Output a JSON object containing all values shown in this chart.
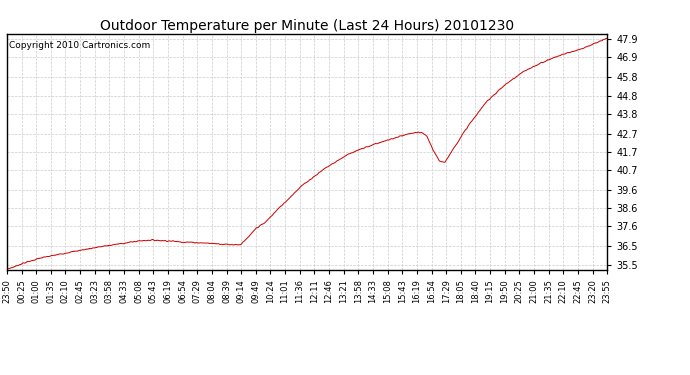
{
  "title": "Outdoor Temperature per Minute (Last 24 Hours) 20101230",
  "copyright_text": "Copyright 2010 Cartronics.com",
  "line_color": "#cc0000",
  "background_color": "#ffffff",
  "grid_color": "#cccccc",
  "yticks": [
    35.5,
    36.5,
    37.6,
    38.6,
    39.6,
    40.7,
    41.7,
    42.7,
    43.8,
    44.8,
    45.8,
    46.9,
    47.9
  ],
  "ylim": [
    35.2,
    48.2
  ],
  "xtick_labels": [
    "23:50",
    "00:25",
    "01:00",
    "01:35",
    "02:10",
    "02:45",
    "03:23",
    "03:58",
    "04:33",
    "05:08",
    "05:43",
    "06:19",
    "06:54",
    "07:29",
    "08:04",
    "08:39",
    "09:14",
    "09:49",
    "10:24",
    "11:01",
    "11:36",
    "12:11",
    "12:46",
    "13:21",
    "13:58",
    "14:33",
    "15:08",
    "15:43",
    "16:19",
    "16:54",
    "17:29",
    "18:05",
    "18:40",
    "19:15",
    "19:50",
    "20:25",
    "21:00",
    "21:35",
    "22:10",
    "22:45",
    "23:20",
    "23:55"
  ],
  "num_points": 1440
}
